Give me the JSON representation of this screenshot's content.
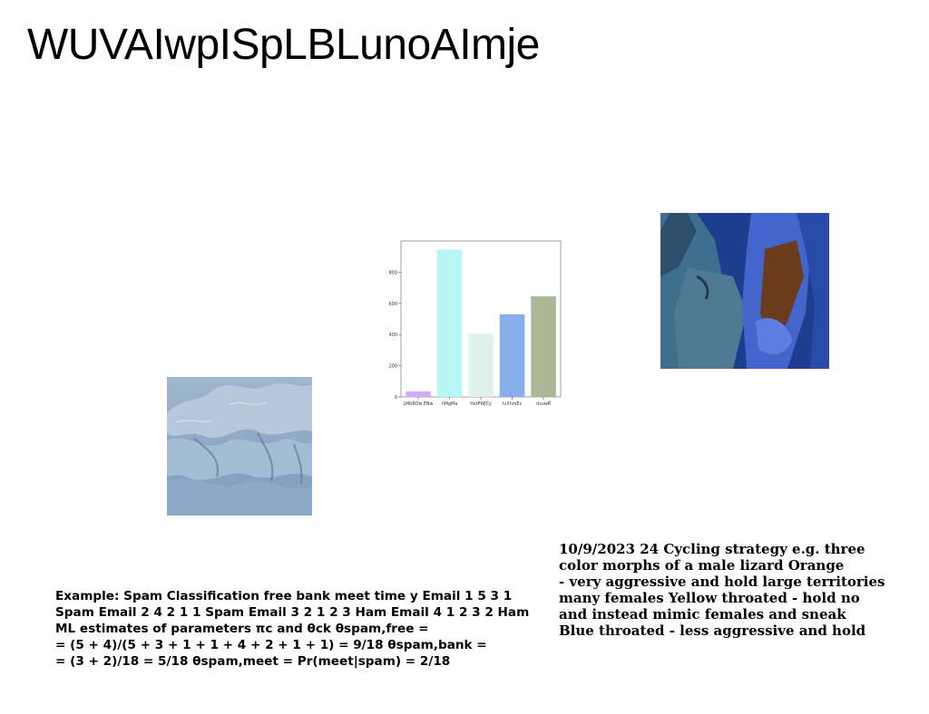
{
  "page": {
    "title": "WUVAIwpISpLBLunoAImje"
  },
  "images": {
    "terrain": "terrain-image",
    "couple": "couple-image"
  },
  "chart_data": {
    "type": "bar",
    "categories": [
      "LMbROw ENw",
      "hMgMa",
      "HxtPWJCy",
      "luXhmEs",
      "rIsuwR"
    ],
    "values": [
      35,
      945,
      405,
      530,
      645
    ],
    "colors": [
      "#cfaef8",
      "#b8f5f5",
      "#dff3ec",
      "#88aeec",
      "#aab896"
    ],
    "yticks": [
      0,
      200,
      400,
      600,
      800
    ],
    "ylim": [
      0,
      1000
    ],
    "title": "",
    "xlabel": "",
    "ylabel": ""
  },
  "text_blocks": {
    "spam": "Example: Spam Classification free bank meet time y Email 1 5 3 1\nSpam Email 2 4 2 1 1 Spam Email 3 2 1 2 3 Ham Email 4 1 2 3 2 Ham\nML estimates of parameters πc and θck θspam,free =\n= (5 + 4)/(5 + 3 + 1 + 1 + 4 + 2 + 1 + 1) = 9/18 θspam,bank =\n= (3 + 2)/18 = 5/18 θspam,meet = Pr(meet|spam) = 2/18",
    "cycling": "10/9/2023 24 Cycling strategy e.g. three\ncolor morphs of a male lizard Orange\n- very aggressive and hold large territories\nmany females Yellow throated - hold no\nand instead mimic females and sneak\nBlue throated - less aggressive and hold"
  }
}
